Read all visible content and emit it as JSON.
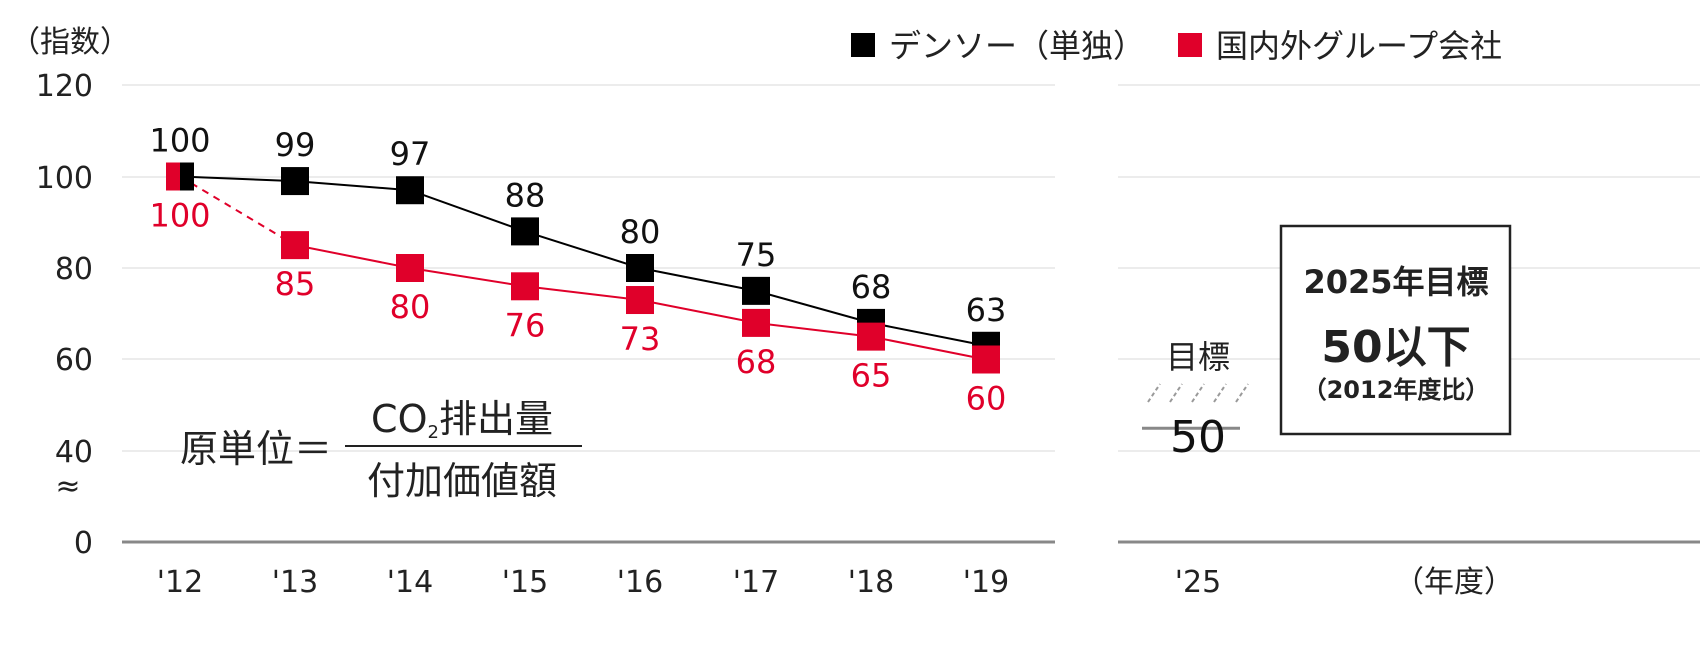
{
  "chart_data": {
    "type": "line",
    "y_unit_label": "（指数）",
    "x_unit_label": "（年度）",
    "yticks": [
      120,
      100,
      80,
      60,
      40,
      0
    ],
    "axis_break_symbol": "≈",
    "ylim": [
      0,
      120
    ],
    "categories": [
      "'12",
      "'13",
      "'14",
      "'15",
      "'16",
      "'17",
      "'18",
      "'19"
    ],
    "grid": true,
    "legend_position": "top-right",
    "series": [
      {
        "name": "デンソー（単独）",
        "color": "#000000",
        "values": [
          100,
          99,
          97,
          88,
          80,
          75,
          68,
          63
        ],
        "labels": [
          "100",
          "99",
          "97",
          "88",
          "80",
          "75",
          "68",
          "63"
        ],
        "label_position": "above"
      },
      {
        "name": "国内外グループ会社",
        "color": "#e0002a",
        "values": [
          100,
          85,
          80,
          76,
          73,
          68,
          65,
          60
        ],
        "labels": [
          "100",
          "85",
          "80",
          "76",
          "73",
          "68",
          "65",
          "60"
        ],
        "label_position": "below",
        "first_segment_dashed": true
      }
    ],
    "target_panel": {
      "category": "'25",
      "label": "目標",
      "value": 50,
      "value_text": "50"
    },
    "target_box": {
      "title": "2025年目標",
      "main": "50以下",
      "sub": "（2012年度比）"
    },
    "formula": {
      "lhs": "原単位＝",
      "numerator_main": "CO",
      "numerator_sub": "2",
      "numerator_rest": "排出量",
      "denominator": "付加価値額"
    }
  }
}
